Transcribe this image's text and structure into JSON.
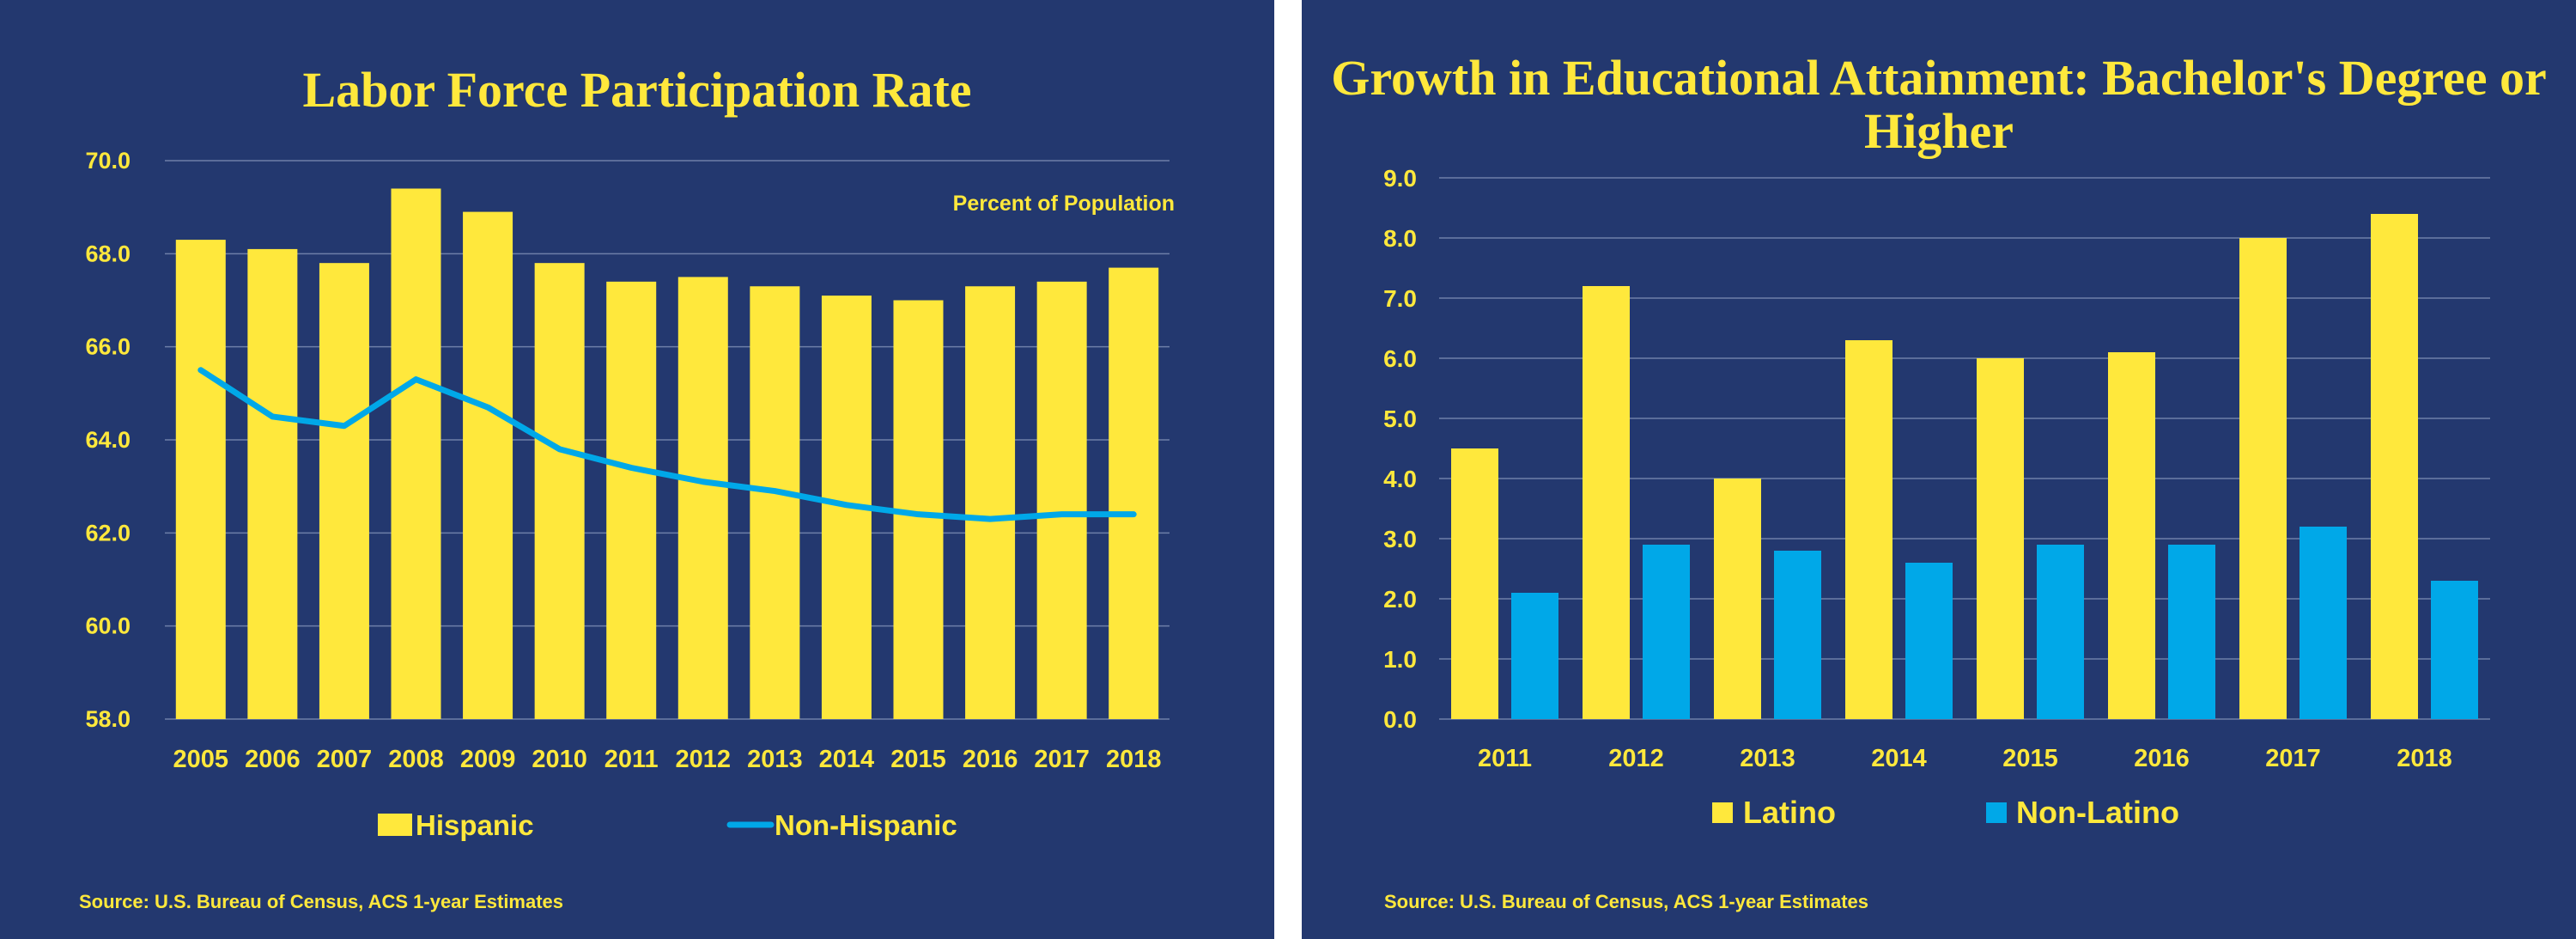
{
  "left": {
    "title": "Labor Force Participation Rate",
    "source": "Source: U.S. Bureau of Census, ACS 1-year Estimates"
  },
  "right": {
    "title": "Growth in Educational Attainment: Bachelor's Degree or Higher",
    "source": "Source: U.S. Bureau of Census, ACS 1-year Estimates"
  },
  "colors": {
    "background": "#23386f",
    "gold": "#ffe83c",
    "blue": "#00a8e8",
    "grid": "#6e7fa8"
  },
  "chart_data": [
    {
      "type": "bar",
      "title": "Labor Force Participation Rate",
      "annotation": "Percent of Population",
      "categories": [
        "2005",
        "2006",
        "2007",
        "2008",
        "2009",
        "2010",
        "2011",
        "2012",
        "2013",
        "2014",
        "2015",
        "2016",
        "2017",
        "2018"
      ],
      "series": [
        {
          "name": "Hispanic",
          "kind": "bar",
          "values": [
            68.3,
            68.1,
            67.8,
            69.4,
            68.9,
            67.8,
            67.4,
            67.5,
            67.3,
            67.1,
            67.0,
            67.3,
            67.4,
            67.7
          ]
        },
        {
          "name": "Non-Hispanic",
          "kind": "line",
          "values": [
            65.5,
            64.5,
            64.3,
            65.3,
            64.7,
            63.8,
            63.4,
            63.1,
            62.9,
            62.6,
            62.4,
            62.3,
            62.4,
            62.4
          ]
        }
      ],
      "ylim": [
        58.0,
        70.0
      ],
      "yticks": [
        "58.0",
        "60.0",
        "62.0",
        "64.0",
        "66.0",
        "68.0",
        "70.0"
      ],
      "grid": true,
      "legend_position": "bottom"
    },
    {
      "type": "bar",
      "title": "Growth in Educational Attainment: Bachelor's Degree or Higher",
      "categories": [
        "2011",
        "2012",
        "2013",
        "2014",
        "2015",
        "2016",
        "2017",
        "2018"
      ],
      "series": [
        {
          "name": "Latino",
          "kind": "bar",
          "values": [
            4.5,
            7.2,
            4.0,
            6.3,
            6.0,
            6.1,
            8.0,
            8.4
          ]
        },
        {
          "name": "Non-Latino",
          "kind": "bar",
          "values": [
            2.1,
            2.9,
            2.8,
            2.6,
            2.9,
            2.9,
            3.2,
            2.3
          ]
        }
      ],
      "ylim": [
        0.0,
        9.0
      ],
      "yticks": [
        "0.0",
        "1.0",
        "2.0",
        "3.0",
        "4.0",
        "5.0",
        "6.0",
        "7.0",
        "8.0",
        "9.0"
      ],
      "grid": true,
      "legend_position": "bottom"
    }
  ]
}
